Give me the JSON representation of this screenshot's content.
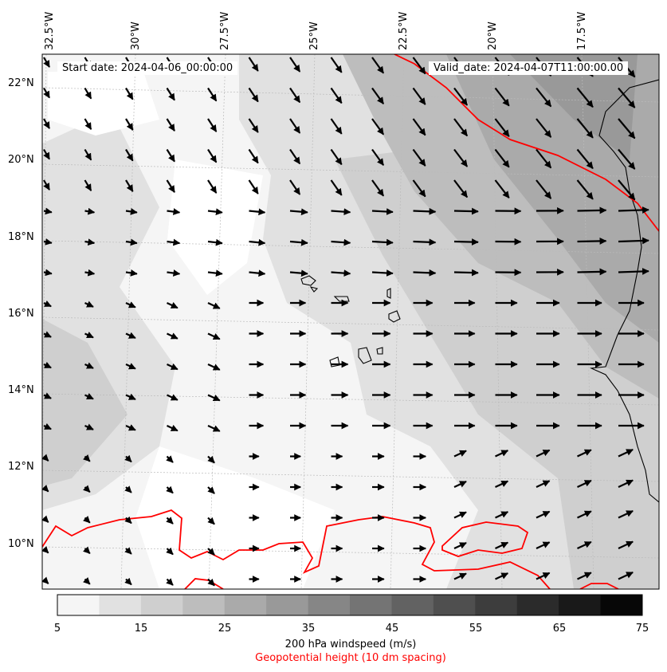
{
  "header": {
    "start_date": "Start date: 2024-04-06_00:00:00",
    "valid_date": "Valid_date: 2024-04-07T11:00:00.00"
  },
  "map": {
    "lon_labels": [
      "32.5°W",
      "30°W",
      "27.5°W",
      "25°W",
      "22.5°W",
      "20°W",
      "17.5°W"
    ],
    "lat_labels": [
      "22°N",
      "20°N",
      "18°N",
      "16°N",
      "14°N",
      "12°N",
      "10°N"
    ],
    "contour_color": "#ff0000",
    "arrow_color": "#000000",
    "coast_color": "#000000"
  },
  "colorbar": {
    "ticks": [
      "5",
      "15",
      "25",
      "35",
      "45",
      "55",
      "65",
      "75"
    ],
    "colors": [
      "#f5f5f5",
      "#e1e1e1",
      "#cfcfcf",
      "#bdbdbd",
      "#aaaaaa",
      "#999999",
      "#868686",
      "#747474",
      "#626262",
      "#4f4f4f",
      "#3d3d3d",
      "#2b2b2b",
      "#191919",
      "#070707"
    ],
    "label": "200 hPa windspeed (m/s)",
    "sublabel": "Geopotential height (10 dm spacing)",
    "sublabel_color": "#ff0000"
  }
}
